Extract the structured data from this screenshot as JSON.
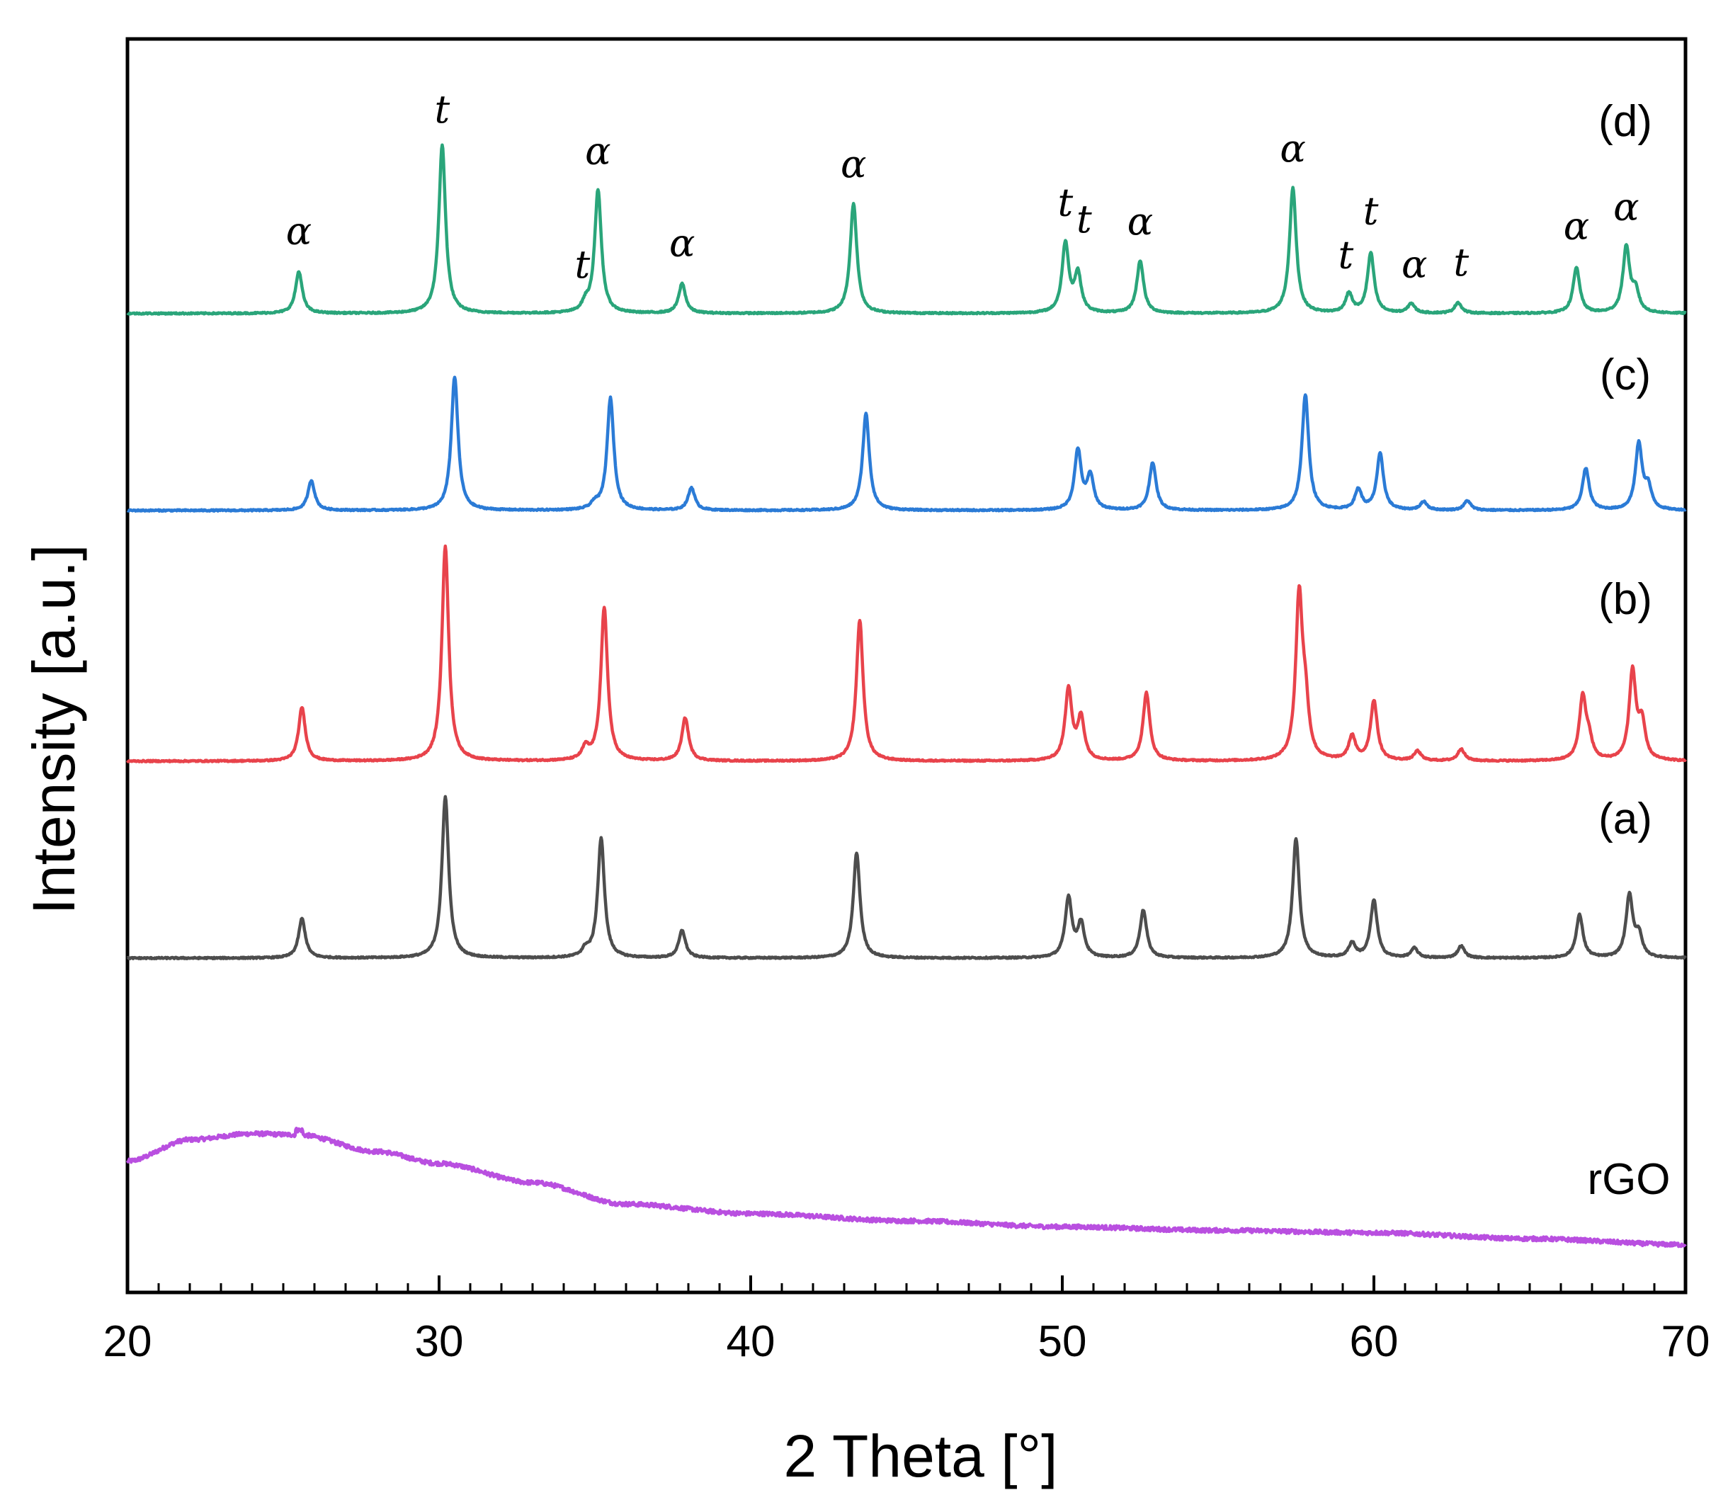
{
  "chart_data": {
    "type": "line",
    "title": "",
    "xlabel": "2 Theta [°]",
    "ylabel": "Intensity [a.u.]",
    "xlim": [
      20,
      70
    ],
    "ylim": [
      0,
      10.5
    ],
    "x_ticks": [
      20,
      30,
      40,
      50,
      60,
      70
    ],
    "x_tick_labels": [
      "20",
      "30",
      "40",
      "50",
      "60",
      "70"
    ],
    "x_minor_tick_step": 1,
    "y_ticks_shown": false,
    "grid": false,
    "legend": "none (curves labelled at right)",
    "series": [
      {
        "name": "rGO",
        "label": "rGO",
        "color": "#b94fe0",
        "baseline": 0.55,
        "profile": "broad hump: rises from 20°, maximum near 24–25°, decays to a flat tail by ~40°",
        "hump_points": [
          [
            20,
            1.1
          ],
          [
            22,
            1.28
          ],
          [
            24,
            1.33
          ],
          [
            25.5,
            1.32
          ],
          [
            28,
            1.18
          ],
          [
            30,
            1.08
          ],
          [
            33,
            0.92
          ],
          [
            36,
            0.74
          ],
          [
            40,
            0.66
          ],
          [
            45,
            0.6
          ],
          [
            50,
            0.55
          ],
          [
            55,
            0.52
          ],
          [
            60,
            0.5
          ],
          [
            65,
            0.45
          ],
          [
            70,
            0.4
          ]
        ],
        "peaks": []
      },
      {
        "name": "(a)",
        "label": "(a)",
        "color": "#4d4d4d",
        "baseline": 2.8,
        "peaks": [
          [
            25.6,
            0.33
          ],
          [
            30.2,
            1.35
          ],
          [
            34.7,
            0.06
          ],
          [
            35.2,
            1.0
          ],
          [
            37.8,
            0.23
          ],
          [
            43.4,
            0.88
          ],
          [
            50.2,
            0.5
          ],
          [
            50.6,
            0.28
          ],
          [
            52.6,
            0.4
          ],
          [
            57.5,
            1.0
          ],
          [
            59.3,
            0.12
          ],
          [
            60.0,
            0.48
          ],
          [
            61.3,
            0.08
          ],
          [
            62.8,
            0.1
          ],
          [
            66.6,
            0.36
          ],
          [
            68.2,
            0.52
          ],
          [
            68.5,
            0.18
          ]
        ]
      },
      {
        "name": "(b)",
        "label": "(b)",
        "color": "#e8434b",
        "baseline": 4.45,
        "peaks": [
          [
            25.6,
            0.45
          ],
          [
            30.2,
            1.8
          ],
          [
            34.7,
            0.1
          ],
          [
            35.3,
            1.28
          ],
          [
            37.9,
            0.36
          ],
          [
            43.5,
            1.18
          ],
          [
            50.2,
            0.6
          ],
          [
            50.6,
            0.35
          ],
          [
            52.7,
            0.57
          ],
          [
            57.6,
            1.35
          ],
          [
            57.8,
            0.4
          ],
          [
            59.3,
            0.2
          ],
          [
            60.0,
            0.5
          ],
          [
            61.4,
            0.08
          ],
          [
            62.8,
            0.1
          ],
          [
            66.7,
            0.52
          ],
          [
            66.9,
            0.15
          ],
          [
            68.3,
            0.74
          ],
          [
            68.6,
            0.3
          ]
        ]
      },
      {
        "name": "(c)",
        "label": "(c)",
        "color": "#2b7bd6",
        "baseline": 6.55,
        "peaks": [
          [
            25.9,
            0.25
          ],
          [
            30.5,
            1.12
          ],
          [
            35.0,
            0.05
          ],
          [
            35.5,
            0.94
          ],
          [
            38.1,
            0.19
          ],
          [
            43.7,
            0.81
          ],
          [
            50.5,
            0.5
          ],
          [
            50.9,
            0.28
          ],
          [
            52.9,
            0.4
          ],
          [
            57.8,
            0.97
          ],
          [
            59.5,
            0.17
          ],
          [
            60.2,
            0.47
          ],
          [
            61.6,
            0.07
          ],
          [
            63.0,
            0.08
          ],
          [
            66.8,
            0.35
          ],
          [
            68.5,
            0.55
          ],
          [
            68.8,
            0.18
          ]
        ]
      },
      {
        "name": "(d)",
        "label": "(d)",
        "color": "#2aa57a",
        "baseline": 8.2,
        "peaks": [
          [
            25.5,
            0.35
          ],
          [
            30.1,
            1.41
          ],
          [
            34.7,
            0.07
          ],
          [
            35.1,
            1.03
          ],
          [
            37.8,
            0.25
          ],
          [
            43.3,
            0.92
          ],
          [
            50.1,
            0.58
          ],
          [
            50.5,
            0.32
          ],
          [
            52.5,
            0.44
          ],
          [
            57.4,
            1.05
          ],
          [
            59.2,
            0.16
          ],
          [
            59.9,
            0.5
          ],
          [
            61.2,
            0.08
          ],
          [
            62.7,
            0.09
          ],
          [
            66.5,
            0.38
          ],
          [
            68.1,
            0.55
          ],
          [
            68.4,
            0.17
          ]
        ]
      }
    ],
    "peak_annotations": [
      {
        "text": "α",
        "x": 25.5,
        "y": 8.78
      },
      {
        "text": "t",
        "x": 30.1,
        "y": 9.8
      },
      {
        "text": "t",
        "x": 34.6,
        "y": 8.5
      },
      {
        "text": "α",
        "x": 35.1,
        "y": 9.45
      },
      {
        "text": "α",
        "x": 37.8,
        "y": 8.68
      },
      {
        "text": "α",
        "x": 43.3,
        "y": 9.34
      },
      {
        "text": "t",
        "x": 50.1,
        "y": 9.02
      },
      {
        "text": "t",
        "x": 50.7,
        "y": 8.88
      },
      {
        "text": "α",
        "x": 52.5,
        "y": 8.86
      },
      {
        "text": "α",
        "x": 57.4,
        "y": 9.47
      },
      {
        "text": "t",
        "x": 59.1,
        "y": 8.58
      },
      {
        "text": "t",
        "x": 59.9,
        "y": 8.95
      },
      {
        "text": "α",
        "x": 61.3,
        "y": 8.5
      },
      {
        "text": "t",
        "x": 62.8,
        "y": 8.52
      },
      {
        "text": "α",
        "x": 66.5,
        "y": 8.82
      },
      {
        "text": "α",
        "x": 68.1,
        "y": 8.98
      }
    ]
  }
}
